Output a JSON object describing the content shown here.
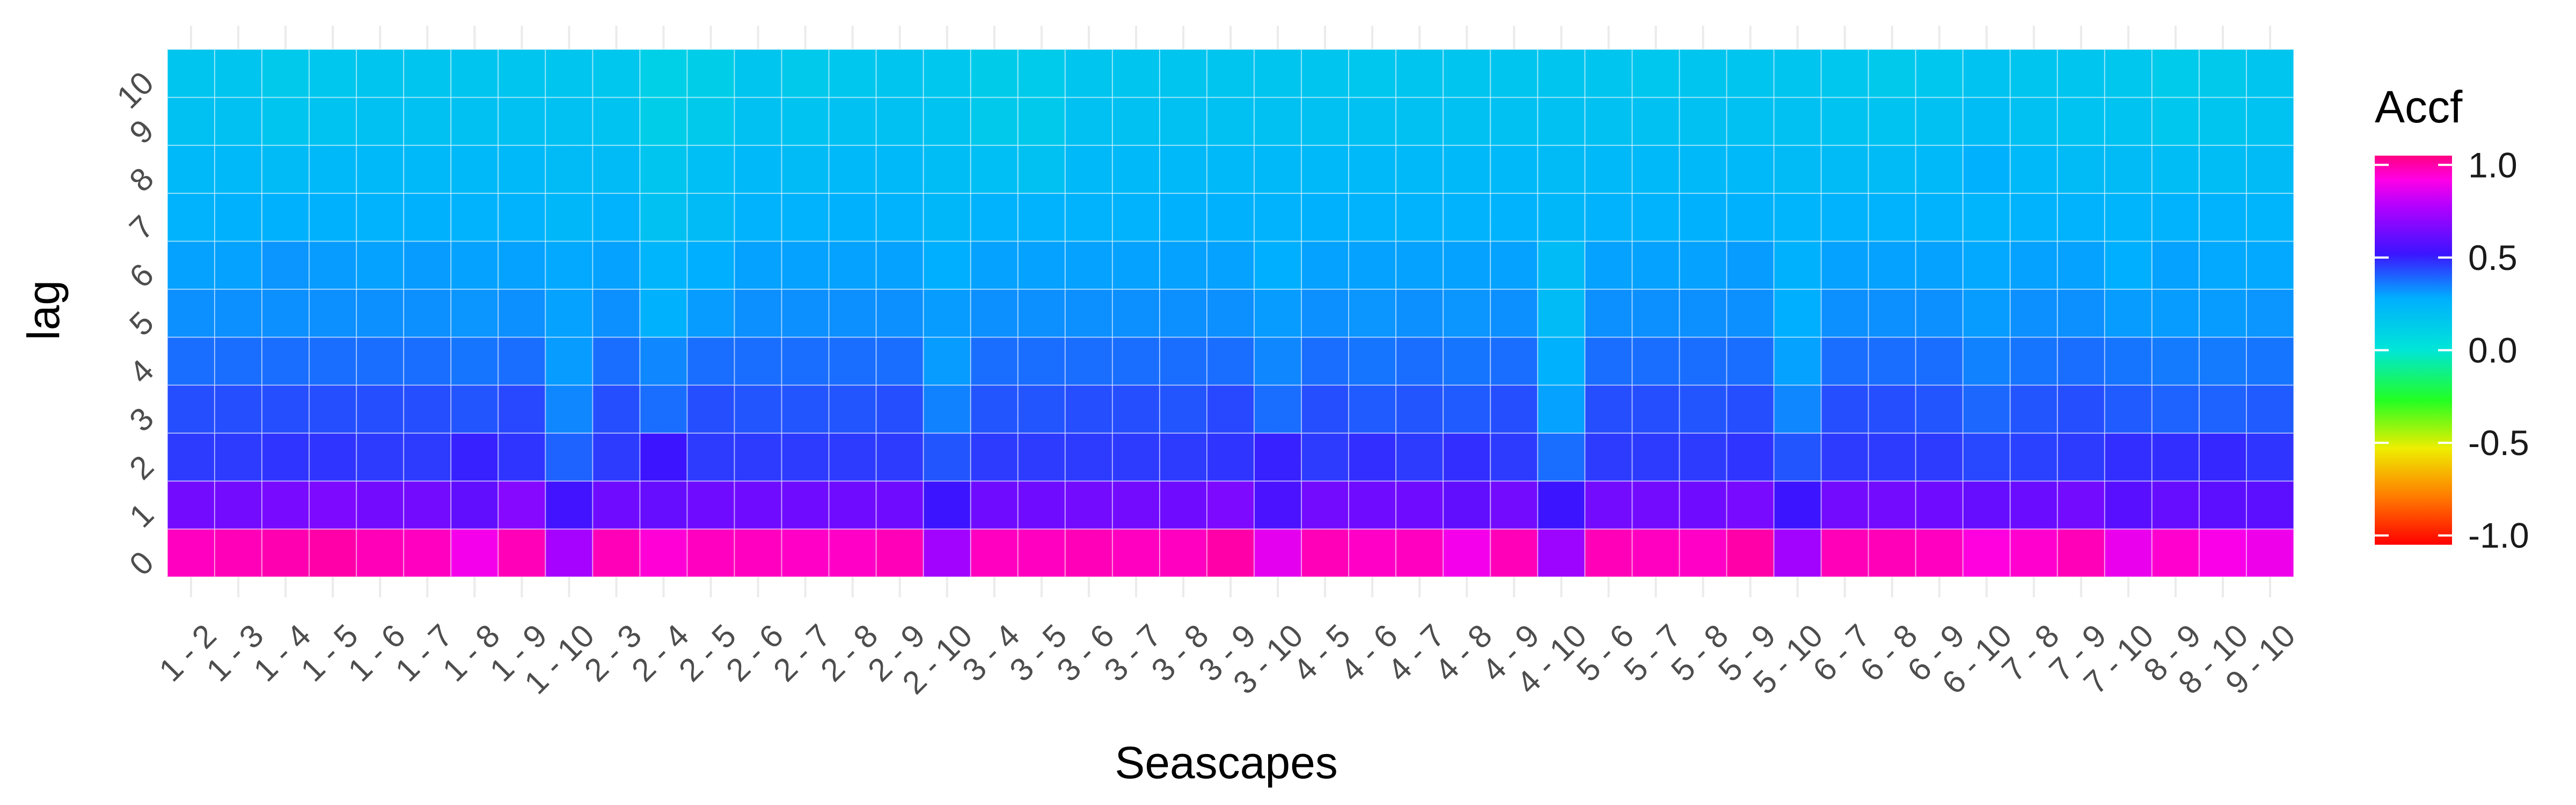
{
  "chart_data": {
    "type": "heatmap",
    "title": "",
    "xlabel": "Seascapes",
    "ylabel": "lag",
    "x_categories": [
      "1 - 2",
      "1 - 3",
      "1 - 4",
      "1 - 5",
      "1 - 6",
      "1 - 7",
      "1 - 8",
      "1 - 9",
      "1 - 10",
      "2 - 3",
      "2 - 4",
      "2 - 5",
      "2 - 6",
      "2 - 7",
      "2 - 8",
      "2 - 9",
      "2 - 10",
      "3 - 4",
      "3 - 5",
      "3 - 6",
      "3 - 7",
      "3 - 8",
      "3 - 9",
      "3 - 10",
      "4 - 5",
      "4 - 6",
      "4 - 7",
      "4 - 8",
      "4 - 9",
      "4 - 10",
      "5 - 6",
      "5 - 7",
      "5 - 8",
      "5 - 9",
      "5 - 10",
      "6 - 7",
      "6 - 8",
      "6 - 9",
      "6 - 10",
      "7 - 8",
      "7 - 9",
      "7 - 10",
      "8 - 9",
      "8 - 10",
      "9 - 10"
    ],
    "y_categories": [
      "0",
      "1",
      "2",
      "3",
      "4",
      "5",
      "6",
      "7",
      "8",
      "9",
      "10"
    ],
    "legend": {
      "title": "Accf",
      "position": "right",
      "range": [
        -1.05,
        1.05
      ],
      "ticks": [
        1.0,
        0.5,
        0.0,
        -0.5,
        -1.0
      ],
      "tick_labels": [
        "1.0",
        "0.5",
        "0.0",
        "-0.5",
        "-1.0"
      ]
    },
    "grid": true,
    "colorscale": "rainbow",
    "values": [
      [
        0.97,
        0.98,
        0.99,
        1.0,
        0.98,
        0.97,
        0.9,
        0.98,
        0.75,
        0.98,
        0.94,
        0.97,
        0.97,
        0.96,
        0.96,
        0.98,
        0.74,
        0.97,
        0.97,
        0.98,
        0.97,
        0.97,
        1.0,
        0.87,
        0.98,
        0.96,
        0.97,
        0.9,
        0.98,
        0.73,
        0.98,
        0.97,
        0.96,
        1.0,
        0.74,
        0.98,
        0.98,
        0.97,
        0.93,
        0.95,
        0.98,
        0.88,
        0.95,
        0.91,
        0.89
      ],
      [
        0.64,
        0.64,
        0.65,
        0.66,
        0.64,
        0.64,
        0.6,
        0.68,
        0.53,
        0.63,
        0.61,
        0.63,
        0.63,
        0.63,
        0.63,
        0.63,
        0.52,
        0.63,
        0.63,
        0.64,
        0.64,
        0.63,
        0.66,
        0.55,
        0.64,
        0.63,
        0.63,
        0.6,
        0.64,
        0.52,
        0.64,
        0.64,
        0.63,
        0.65,
        0.52,
        0.64,
        0.64,
        0.63,
        0.61,
        0.62,
        0.64,
        0.58,
        0.61,
        0.59,
        0.59
      ],
      [
        0.46,
        0.46,
        0.47,
        0.47,
        0.46,
        0.46,
        0.5,
        0.47,
        0.4,
        0.46,
        0.52,
        0.46,
        0.46,
        0.46,
        0.46,
        0.46,
        0.42,
        0.46,
        0.46,
        0.46,
        0.46,
        0.46,
        0.47,
        0.5,
        0.46,
        0.48,
        0.46,
        0.48,
        0.46,
        0.38,
        0.46,
        0.46,
        0.46,
        0.47,
        0.42,
        0.46,
        0.46,
        0.46,
        0.44,
        0.45,
        0.46,
        0.48,
        0.48,
        0.49,
        0.47
      ],
      [
        0.43,
        0.43,
        0.43,
        0.43,
        0.43,
        0.43,
        0.42,
        0.44,
        0.34,
        0.43,
        0.38,
        0.43,
        0.42,
        0.42,
        0.42,
        0.43,
        0.35,
        0.42,
        0.42,
        0.43,
        0.43,
        0.42,
        0.44,
        0.38,
        0.43,
        0.41,
        0.42,
        0.41,
        0.43,
        0.3,
        0.43,
        0.43,
        0.42,
        0.43,
        0.34,
        0.43,
        0.43,
        0.42,
        0.39,
        0.42,
        0.43,
        0.41,
        0.4,
        0.4,
        0.41
      ],
      [
        0.38,
        0.38,
        0.38,
        0.38,
        0.38,
        0.38,
        0.37,
        0.38,
        0.31,
        0.38,
        0.34,
        0.38,
        0.38,
        0.38,
        0.38,
        0.38,
        0.31,
        0.38,
        0.38,
        0.38,
        0.38,
        0.38,
        0.38,
        0.34,
        0.38,
        0.37,
        0.38,
        0.37,
        0.38,
        0.27,
        0.38,
        0.38,
        0.38,
        0.38,
        0.3,
        0.38,
        0.38,
        0.38,
        0.35,
        0.37,
        0.38,
        0.37,
        0.36,
        0.36,
        0.37
      ],
      [
        0.33,
        0.33,
        0.33,
        0.33,
        0.33,
        0.33,
        0.32,
        0.33,
        0.3,
        0.33,
        0.27,
        0.31,
        0.33,
        0.33,
        0.33,
        0.33,
        0.31,
        0.33,
        0.33,
        0.33,
        0.33,
        0.33,
        0.33,
        0.31,
        0.33,
        0.32,
        0.33,
        0.32,
        0.33,
        0.22,
        0.33,
        0.33,
        0.33,
        0.33,
        0.28,
        0.33,
        0.33,
        0.33,
        0.31,
        0.33,
        0.33,
        0.31,
        0.31,
        0.31,
        0.32
      ],
      [
        0.3,
        0.3,
        0.32,
        0.31,
        0.3,
        0.31,
        0.3,
        0.3,
        0.29,
        0.3,
        0.25,
        0.28,
        0.3,
        0.3,
        0.3,
        0.3,
        0.28,
        0.3,
        0.3,
        0.3,
        0.3,
        0.3,
        0.3,
        0.28,
        0.3,
        0.3,
        0.3,
        0.3,
        0.3,
        0.22,
        0.3,
        0.3,
        0.3,
        0.31,
        0.27,
        0.3,
        0.3,
        0.3,
        0.29,
        0.3,
        0.3,
        0.28,
        0.3,
        0.29,
        0.29
      ],
      [
        0.26,
        0.27,
        0.27,
        0.27,
        0.26,
        0.27,
        0.26,
        0.26,
        0.24,
        0.26,
        0.19,
        0.22,
        0.26,
        0.26,
        0.27,
        0.26,
        0.24,
        0.26,
        0.26,
        0.26,
        0.26,
        0.27,
        0.27,
        0.26,
        0.27,
        0.26,
        0.26,
        0.26,
        0.26,
        0.24,
        0.26,
        0.26,
        0.27,
        0.27,
        0.25,
        0.26,
        0.26,
        0.26,
        0.25,
        0.26,
        0.26,
        0.25,
        0.26,
        0.26,
        0.25
      ],
      [
        0.23,
        0.23,
        0.22,
        0.23,
        0.23,
        0.23,
        0.23,
        0.23,
        0.22,
        0.22,
        0.17,
        0.2,
        0.23,
        0.22,
        0.23,
        0.23,
        0.21,
        0.2,
        0.19,
        0.23,
        0.23,
        0.23,
        0.23,
        0.23,
        0.23,
        0.23,
        0.23,
        0.23,
        0.23,
        0.22,
        0.23,
        0.23,
        0.23,
        0.23,
        0.22,
        0.22,
        0.22,
        0.23,
        0.27,
        0.23,
        0.22,
        0.22,
        0.21,
        0.21,
        0.22
      ],
      [
        0.19,
        0.19,
        0.17,
        0.18,
        0.19,
        0.19,
        0.19,
        0.19,
        0.19,
        0.18,
        0.12,
        0.15,
        0.19,
        0.18,
        0.19,
        0.19,
        0.18,
        0.15,
        0.15,
        0.19,
        0.19,
        0.19,
        0.19,
        0.19,
        0.19,
        0.19,
        0.19,
        0.19,
        0.19,
        0.19,
        0.19,
        0.19,
        0.19,
        0.19,
        0.19,
        0.18,
        0.18,
        0.19,
        0.21,
        0.19,
        0.18,
        0.18,
        0.16,
        0.17,
        0.18
      ],
      [
        0.17,
        0.17,
        0.15,
        0.16,
        0.17,
        0.17,
        0.17,
        0.17,
        0.17,
        0.16,
        0.11,
        0.12,
        0.17,
        0.15,
        0.16,
        0.17,
        0.16,
        0.13,
        0.14,
        0.17,
        0.17,
        0.17,
        0.17,
        0.17,
        0.17,
        0.16,
        0.17,
        0.17,
        0.17,
        0.17,
        0.17,
        0.16,
        0.17,
        0.17,
        0.17,
        0.16,
        0.15,
        0.16,
        0.18,
        0.17,
        0.17,
        0.16,
        0.14,
        0.15,
        0.17
      ]
    ]
  }
}
